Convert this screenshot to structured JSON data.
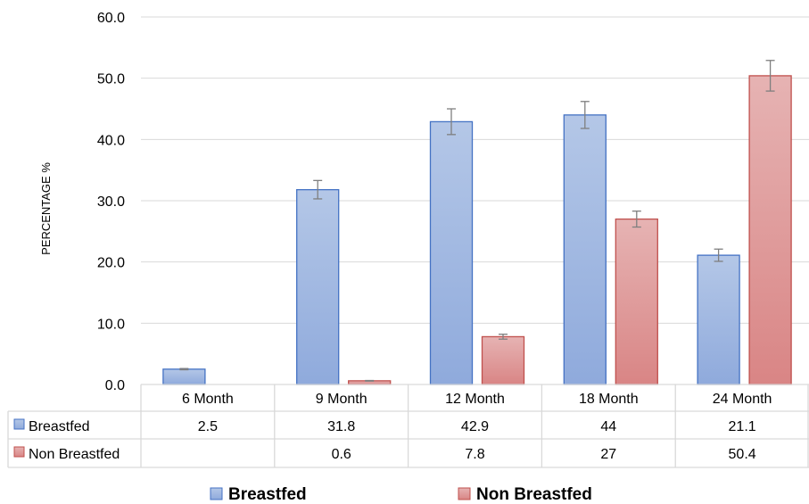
{
  "chart_data": {
    "type": "bar",
    "ylabel": "PERCENTAGE %",
    "ylim": [
      0,
      60
    ],
    "yticks": [
      "0.0",
      "10.0",
      "20.0",
      "30.0",
      "40.0",
      "50.0",
      "60.0"
    ],
    "grid": true,
    "categories": [
      "6 Month",
      "9 Month",
      "12 Month",
      "18 Month",
      "24 Month"
    ],
    "series": [
      {
        "name": "Breastfed",
        "color": "#8faadc",
        "values": [
          2.5,
          31.8,
          42.9,
          44,
          21.1
        ],
        "error": [
          0.1,
          1.5,
          2.1,
          2.2,
          1.0
        ],
        "table_labels": [
          "2.5",
          "31.8",
          "42.9",
          "44",
          "21.1"
        ]
      },
      {
        "name": "Non Breastfed",
        "color": "#e39595",
        "values": [
          null,
          0.6,
          7.8,
          27,
          50.4
        ],
        "error": [
          null,
          0.05,
          0.4,
          1.3,
          2.5
        ],
        "table_labels": [
          "",
          "0.6",
          "7.8",
          "27",
          "50.4"
        ]
      }
    ],
    "legend": {
      "position": "bottom"
    },
    "data_table": true
  }
}
